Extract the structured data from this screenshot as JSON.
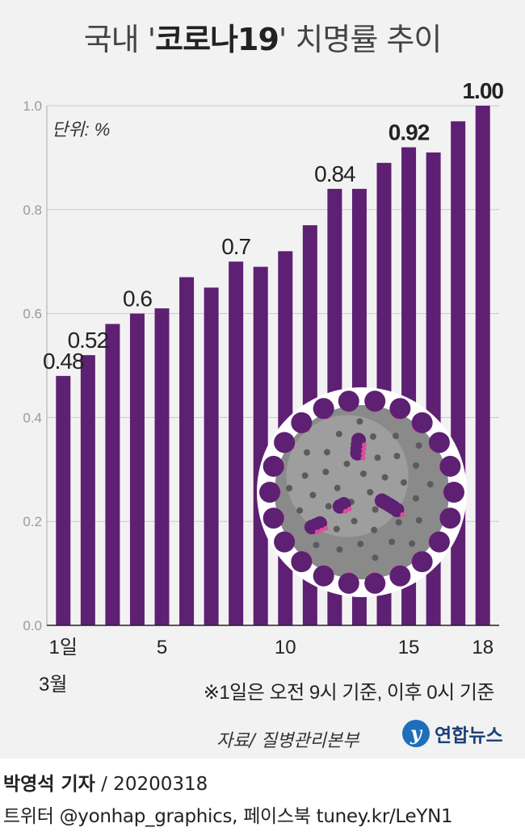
{
  "title": {
    "prefix": "국내 '",
    "bold": "코로나19",
    "suffix": "' 치명률 추이"
  },
  "unit_label": "단위: %",
  "month_label": "3월",
  "note": "※1일은 오전 9시 기준, 이후 0시 기준",
  "source": "자료/ 질병관리본부",
  "logo": {
    "mark": "y",
    "name": "연합뉴스"
  },
  "credit": {
    "reporter": "박영석 기자",
    "date": " /  20200318",
    "social": "트위터 @yonhap_graphics, 페이스북 tuney.kr/LeYN1"
  },
  "colors": {
    "bar": "#5e2072",
    "panel": "#f2f2f2",
    "grid": "#c9c9c9",
    "axis": "#222222"
  },
  "icon": "coronavirus-illustration",
  "chart_data": {
    "type": "bar",
    "title": "국내 '코로나19' 치명률 추이",
    "ylabel": "단위: %",
    "xlabel": "3월",
    "ylim": [
      0.0,
      1.0
    ],
    "yticks": [
      "0.0",
      "0.2",
      "0.4",
      "0.6",
      "0.8",
      "1.0"
    ],
    "grid": true,
    "categories": [
      "1",
      "2",
      "3",
      "4",
      "5",
      "6",
      "7",
      "8",
      "9",
      "10",
      "11",
      "12",
      "13",
      "14",
      "15",
      "16",
      "17",
      "18"
    ],
    "xtick_labels": [
      {
        "index": 0,
        "label": "1일"
      },
      {
        "index": 4,
        "label": "5"
      },
      {
        "index": 9,
        "label": "10"
      },
      {
        "index": 14,
        "label": "15"
      },
      {
        "index": 17,
        "label": "18"
      }
    ],
    "values": [
      0.48,
      0.52,
      0.58,
      0.6,
      0.61,
      0.67,
      0.65,
      0.7,
      0.69,
      0.72,
      0.77,
      0.84,
      0.84,
      0.89,
      0.92,
      0.91,
      0.97,
      1.0
    ],
    "data_labels": [
      {
        "index": 0,
        "text": "0.48",
        "bold": false
      },
      {
        "index": 1,
        "text": "0.52",
        "bold": false
      },
      {
        "index": 3,
        "text": "0.6",
        "bold": false
      },
      {
        "index": 7,
        "text": "0.7",
        "bold": false
      },
      {
        "index": 11,
        "text": "0.84",
        "bold": false
      },
      {
        "index": 14,
        "text": "0.92",
        "bold": true
      },
      {
        "index": 17,
        "text": "1.00",
        "bold": true
      }
    ]
  }
}
